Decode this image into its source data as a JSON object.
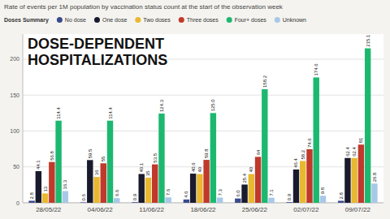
{
  "chart_data": {
    "type": "bar",
    "title": "Rate of events per 1M population by vaccination status count at the start of the observation week",
    "legend_title": "Doses Summary",
    "annotations": [
      "DOSE-DEPENDENT\nHOSPITALIZATIONS"
    ],
    "categories": [
      "28/05/22",
      "04/06/22",
      "11/06/22",
      "18/06/22",
      "25/06/22",
      "02/07/22",
      "09/07/22"
    ],
    "series": [
      {
        "name": "No dose",
        "color": "#3a4a8c",
        "values": [
          2.8,
          0.6,
          0.9,
          4.6,
          6.0,
          0.9,
          2.8
        ],
        "value_labels": [
          "2.8",
          "0.6",
          "0.9",
          "4.6",
          "6.0",
          "0.9",
          "2.8"
        ]
      },
      {
        "name": "One dose",
        "color": "#1a1a2e",
        "values": [
          44.1,
          59.5,
          40.1,
          40.6,
          25.4,
          46.4,
          62.4
        ],
        "value_labels": [
          "44.1",
          "59.5",
          "40.1",
          "40.6",
          "25.4",
          "46.4",
          "62.4"
        ]
      },
      {
        "name": "Two doses",
        "color": "#e8b830",
        "values": [
          13.0,
          36.0,
          35.0,
          40.0,
          40.0,
          58.2,
          62.4
        ],
        "value_labels": [
          "13",
          "36",
          "35",
          "40",
          "40",
          "58.2",
          "62.4"
        ]
      },
      {
        "name": "Three doses",
        "color": "#c0392b",
        "values": [
          56.8,
          55.0,
          53.5,
          59.8,
          64.0,
          74.6,
          81.0
        ],
        "value_labels": [
          "56.8",
          "55",
          "53.5",
          "59.8",
          "64",
          "74.6",
          "81"
        ]
      },
      {
        "name": "Four+ doses",
        "color": "#1db870",
        "values": [
          114.4,
          114.4,
          124.3,
          125.0,
          158.2,
          174.6,
          215.1
        ],
        "value_labels": [
          "114.4",
          "114.4",
          "124.3",
          "125.0",
          "158.2",
          "174.6",
          "215.1"
        ]
      },
      {
        "name": "Unknown",
        "color": "#a8c8e8",
        "values": [
          16.3,
          6.6,
          7.6,
          7.3,
          7.1,
          9.8,
          26.8
        ],
        "value_labels": [
          "16.3",
          "6.6",
          "7.6",
          "7.3",
          "7.1",
          "9.8",
          "26.8"
        ]
      }
    ],
    "ylim": [
      0,
      235
    ],
    "yticks": [
      0,
      50,
      100,
      150,
      200
    ],
    "grid": true,
    "legend": "top-left",
    "data_labels": true
  }
}
